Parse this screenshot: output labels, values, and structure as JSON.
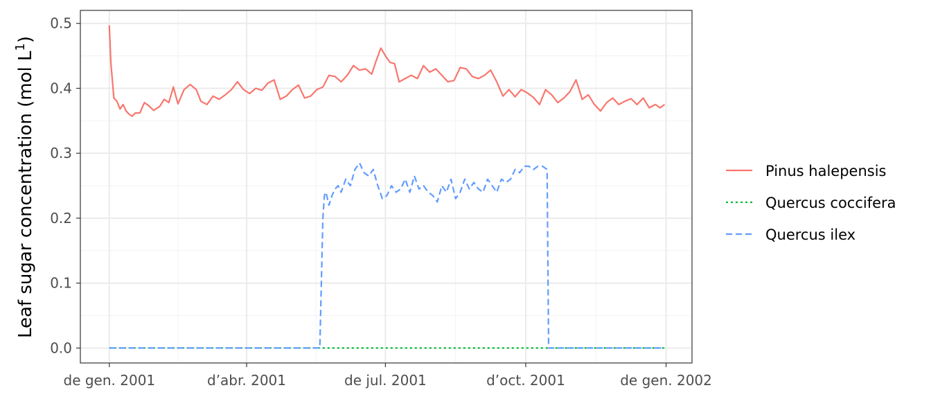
{
  "chart_data": {
    "type": "line",
    "title": "",
    "xlabel": "",
    "ylabel": "Leaf sugar concentration  (mol  L",
    "ylabel_superscript": "1",
    "ylabel_close": ")",
    "xlim": [
      "2000-12-13",
      "2002-01-18"
    ],
    "ylim": [
      -0.023,
      0.52
    ],
    "grid": true,
    "legend_position": "right",
    "x_ticks": [
      {
        "date": "2001-01-01",
        "label": "de gen. 2001"
      },
      {
        "date": "2001-04-01",
        "label": "d’abr. 2001"
      },
      {
        "date": "2001-07-01",
        "label": "de jul. 2001"
      },
      {
        "date": "2001-10-01",
        "label": "d’oct. 2001"
      },
      {
        "date": "2002-01-01",
        "label": "de gen. 2002"
      }
    ],
    "y_ticks": [
      0.0,
      0.1,
      0.2,
      0.3,
      0.4,
      0.5
    ],
    "y_tick_labels": [
      "0.0",
      "0.1",
      "0.2",
      "0.3",
      "0.4",
      "0.5"
    ],
    "series": [
      {
        "name": "Pinus halepensis",
        "color": "#F8766D",
        "dash": "solid",
        "x": [
          "2001-01-01",
          "2001-01-02",
          "2001-01-04",
          "2001-01-06",
          "2001-01-08",
          "2001-01-10",
          "2001-01-12",
          "2001-01-14",
          "2001-01-16",
          "2001-01-18",
          "2001-01-21",
          "2001-01-24",
          "2001-01-27",
          "2001-01-30",
          "2001-02-03",
          "2001-02-06",
          "2001-02-09",
          "2001-02-12",
          "2001-02-15",
          "2001-02-19",
          "2001-02-23",
          "2001-02-27",
          "2001-03-02",
          "2001-03-06",
          "2001-03-10",
          "2001-03-14",
          "2001-03-18",
          "2001-03-22",
          "2001-03-26",
          "2001-03-30",
          "2001-04-03",
          "2001-04-07",
          "2001-04-11",
          "2001-04-15",
          "2001-04-19",
          "2001-04-23",
          "2001-04-27",
          "2001-05-01",
          "2001-05-05",
          "2001-05-09",
          "2001-05-13",
          "2001-05-17",
          "2001-05-21",
          "2001-05-25",
          "2001-05-29",
          "2001-06-02",
          "2001-06-06",
          "2001-06-10",
          "2001-06-14",
          "2001-06-18",
          "2001-06-22",
          "2001-06-25",
          "2001-06-28",
          "2001-07-01",
          "2001-07-04",
          "2001-07-07",
          "2001-07-10",
          "2001-07-14",
          "2001-07-18",
          "2001-07-22",
          "2001-07-26",
          "2001-07-30",
          "2001-08-03",
          "2001-08-07",
          "2001-08-11",
          "2001-08-15",
          "2001-08-19",
          "2001-08-23",
          "2001-08-27",
          "2001-08-31",
          "2001-09-04",
          "2001-09-08",
          "2001-09-12",
          "2001-09-16",
          "2001-09-20",
          "2001-09-24",
          "2001-09-28",
          "2001-10-02",
          "2001-10-06",
          "2001-10-10",
          "2001-10-14",
          "2001-10-18",
          "2001-10-22",
          "2001-10-26",
          "2001-10-30",
          "2001-11-03",
          "2001-11-07",
          "2001-11-11",
          "2001-11-15",
          "2001-11-19",
          "2001-11-23",
          "2001-11-27",
          "2001-12-01",
          "2001-12-05",
          "2001-12-09",
          "2001-12-13",
          "2001-12-17",
          "2001-12-21",
          "2001-12-25",
          "2001-12-28",
          "2001-12-31"
        ],
        "values": [
          0.497,
          0.44,
          0.385,
          0.38,
          0.368,
          0.375,
          0.365,
          0.36,
          0.357,
          0.362,
          0.362,
          0.378,
          0.373,
          0.366,
          0.372,
          0.383,
          0.378,
          0.402,
          0.376,
          0.398,
          0.406,
          0.398,
          0.38,
          0.375,
          0.388,
          0.383,
          0.39,
          0.398,
          0.41,
          0.398,
          0.392,
          0.4,
          0.397,
          0.408,
          0.413,
          0.383,
          0.388,
          0.398,
          0.405,
          0.385,
          0.388,
          0.398,
          0.402,
          0.42,
          0.418,
          0.41,
          0.42,
          0.435,
          0.428,
          0.43,
          0.422,
          0.443,
          0.462,
          0.45,
          0.44,
          0.438,
          0.41,
          0.415,
          0.42,
          0.415,
          0.435,
          0.425,
          0.43,
          0.42,
          0.41,
          0.412,
          0.432,
          0.43,
          0.418,
          0.415,
          0.42,
          0.428,
          0.41,
          0.388,
          0.398,
          0.387,
          0.398,
          0.393,
          0.386,
          0.375,
          0.398,
          0.39,
          0.378,
          0.385,
          0.395,
          0.413,
          0.383,
          0.39,
          0.375,
          0.365,
          0.378,
          0.385,
          0.375,
          0.38,
          0.384,
          0.375,
          0.385,
          0.37,
          0.375,
          0.37,
          0.375
        ]
      },
      {
        "name": "Quercus coccifera",
        "color": "#00BA38",
        "dash": "dotted",
        "x": [
          "2001-01-01",
          "2001-12-31"
        ],
        "values": [
          0.0,
          0.0
        ]
      },
      {
        "name": "Quercus ilex",
        "color": "#619CFF",
        "dash": "dashed",
        "x": [
          "2001-01-01",
          "2001-05-19",
          "2001-05-20",
          "2001-05-21",
          "2001-05-22",
          "2001-05-23",
          "2001-05-25",
          "2001-05-27",
          "2001-05-29",
          "2001-05-31",
          "2001-06-02",
          "2001-06-05",
          "2001-06-08",
          "2001-06-11",
          "2001-06-14",
          "2001-06-17",
          "2001-06-20",
          "2001-06-23",
          "2001-06-26",
          "2001-06-29",
          "2001-07-02",
          "2001-07-05",
          "2001-07-08",
          "2001-07-11",
          "2001-07-14",
          "2001-07-17",
          "2001-07-20",
          "2001-07-23",
          "2001-07-26",
          "2001-07-29",
          "2001-08-01",
          "2001-08-04",
          "2001-08-07",
          "2001-08-10",
          "2001-08-13",
          "2001-08-16",
          "2001-08-19",
          "2001-08-22",
          "2001-08-25",
          "2001-08-28",
          "2001-08-31",
          "2001-09-03",
          "2001-09-06",
          "2001-09-09",
          "2001-09-12",
          "2001-09-15",
          "2001-09-18",
          "2001-09-21",
          "2001-09-24",
          "2001-09-27",
          "2001-09-30",
          "2001-10-03",
          "2001-10-06",
          "2001-10-09",
          "2001-10-12",
          "2001-10-15",
          "2001-10-16",
          "2001-10-17",
          "2001-12-31"
        ],
        "values": [
          0.0,
          0.0,
          0.1,
          0.2,
          0.235,
          0.24,
          0.22,
          0.235,
          0.245,
          0.25,
          0.24,
          0.26,
          0.25,
          0.275,
          0.285,
          0.27,
          0.265,
          0.275,
          0.25,
          0.23,
          0.235,
          0.25,
          0.24,
          0.245,
          0.26,
          0.24,
          0.265,
          0.245,
          0.25,
          0.24,
          0.235,
          0.225,
          0.25,
          0.24,
          0.26,
          0.23,
          0.24,
          0.26,
          0.245,
          0.255,
          0.245,
          0.24,
          0.26,
          0.25,
          0.24,
          0.26,
          0.255,
          0.26,
          0.275,
          0.27,
          0.28,
          0.28,
          0.275,
          0.28,
          0.28,
          0.275,
          0.0,
          0.0,
          0.0
        ]
      }
    ]
  }
}
